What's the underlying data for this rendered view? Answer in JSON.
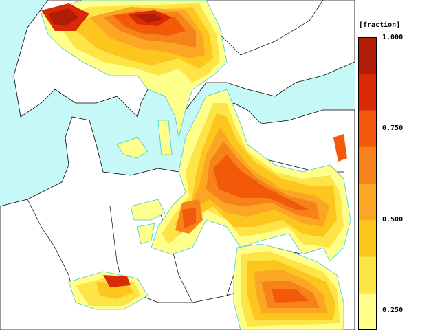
{
  "legend": {
    "unit_label": "[fraction]",
    "tick_labels": [
      "1.000",
      "0.750",
      "0.500",
      "0.250"
    ],
    "colors": [
      "#b01d04",
      "#d92a06",
      "#f25a0a",
      "#f7821a",
      "#fba624",
      "#fdc61e",
      "#fde547",
      "#ffff8c"
    ]
  },
  "map": {
    "ocean_color": "#c7f8f8",
    "land_color": "#ffffff",
    "border_color": "#000000",
    "coast_contour_color": "#3fc8e6"
  }
}
